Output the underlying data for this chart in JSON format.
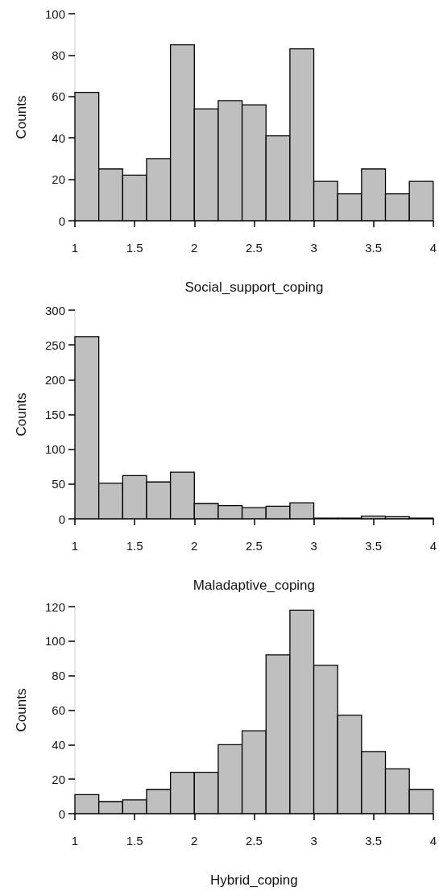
{
  "chart_data": [
    {
      "type": "histogram",
      "xlabel": "Social_support_coping",
      "ylabel": "Counts",
      "color": "#bfbfbf",
      "bins": [
        1,
        1.2,
        1.4,
        1.6,
        1.8,
        2,
        2.2,
        2.4,
        2.6,
        2.8,
        3,
        3.2,
        3.4,
        3.6,
        3.8,
        4
      ],
      "values": [
        62,
        25,
        22,
        30,
        85,
        54,
        58,
        56,
        41,
        83,
        19,
        13,
        25,
        13,
        19
      ],
      "xlim": [
        1,
        4
      ],
      "xticks": [
        1,
        1.5,
        2,
        2.5,
        3,
        3.5,
        4
      ],
      "ylim": [
        0,
        100
      ],
      "yticks": [
        0,
        20,
        40,
        60,
        80,
        100
      ]
    },
    {
      "type": "histogram",
      "xlabel": "Maladaptive_coping",
      "ylabel": "Counts",
      "color": "#bfbfbf",
      "bins": [
        1,
        1.2,
        1.4,
        1.6,
        1.8,
        2,
        2.2,
        2.4,
        2.6,
        2.8,
        3,
        3.2,
        3.4,
        3.6,
        3.8,
        4
      ],
      "values": [
        262,
        51,
        62,
        53,
        67,
        22,
        19,
        16,
        18,
        23,
        1,
        1,
        4,
        3,
        1
      ],
      "xlim": [
        1,
        4
      ],
      "xticks": [
        1,
        1.5,
        2,
        2.5,
        3,
        3.5,
        4
      ],
      "ylim": [
        0,
        300
      ],
      "yticks": [
        0,
        50,
        100,
        150,
        200,
        250,
        300
      ]
    },
    {
      "type": "histogram",
      "xlabel": "Hybrid_coping",
      "ylabel": "Counts",
      "color": "#bfbfbf",
      "bins": [
        1,
        1.2,
        1.4,
        1.6,
        1.8,
        2,
        2.2,
        2.4,
        2.6,
        2.8,
        3,
        3.2,
        3.4,
        3.6,
        3.8,
        4
      ],
      "values": [
        11,
        7,
        8,
        14,
        24,
        24,
        40,
        48,
        92,
        118,
        86,
        57,
        36,
        26,
        14
      ],
      "xlim": [
        1,
        4
      ],
      "xticks": [
        1,
        1.5,
        2,
        2.5,
        3,
        3.5,
        4
      ],
      "ylim": [
        0,
        120
      ],
      "yticks": [
        0,
        20,
        40,
        60,
        80,
        100,
        120
      ]
    }
  ]
}
